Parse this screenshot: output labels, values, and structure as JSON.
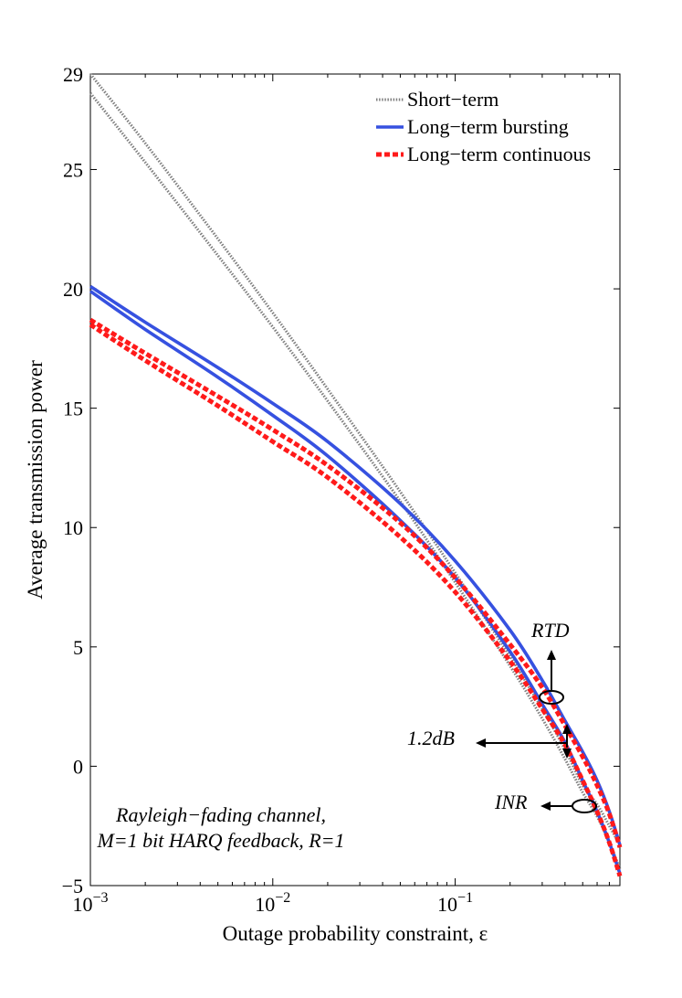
{
  "chart_data": {
    "type": "line",
    "title": "",
    "xlabel": "Outage probability constraint, ε",
    "ylabel": "Average transmission power",
    "xscale": "log",
    "xlim": [
      0.001,
      0.8
    ],
    "ylim": [
      -5,
      29
    ],
    "x_ticks": [
      0.001,
      0.01,
      0.1
    ],
    "x_tick_labels": [
      {
        "base": "10",
        "exp": "−3"
      },
      {
        "base": "10",
        "exp": "−2"
      },
      {
        "base": "10",
        "exp": "−1"
      }
    ],
    "y_ticks": [
      -5,
      0,
      5,
      10,
      15,
      20,
      25,
      29
    ],
    "y_tick_labels": [
      "−5",
      "0",
      "5",
      "10",
      "15",
      "20",
      "25",
      "29"
    ],
    "grid": false,
    "legend_position": "top-right",
    "legend": [
      {
        "label": "Short−term",
        "style": "dotted",
        "color": "#7f7f7f"
      },
      {
        "label": "Long−term bursting",
        "style": "solid",
        "color": "#3651e0"
      },
      {
        "label": "Long−term continuous",
        "style": "dashed",
        "color": "#ff1a1a"
      }
    ],
    "series": [
      {
        "name": "Short-term (RTD)",
        "style": "dotted",
        "color": "#7f7f7f",
        "x": [
          0.001,
          0.002,
          0.005,
          0.01,
          0.02,
          0.05,
          0.1,
          0.2,
          0.3,
          0.4,
          0.5,
          0.6,
          0.7,
          0.8
        ],
        "y": [
          29.0,
          26.1,
          22.1,
          19.0,
          15.8,
          11.5,
          8.1,
          4.6,
          2.4,
          0.7,
          -0.8,
          -1.6,
          -2.5,
          -3.3
        ]
      },
      {
        "name": "Short-term (INR)",
        "style": "dotted",
        "color": "#7f7f7f",
        "x": [
          0.001,
          0.002,
          0.005,
          0.01,
          0.02,
          0.05,
          0.1,
          0.2,
          0.3,
          0.4,
          0.5,
          0.6,
          0.7,
          0.8
        ],
        "y": [
          28.2,
          25.3,
          21.4,
          18.4,
          15.3,
          11.1,
          7.7,
          4.2,
          2.0,
          0.3,
          -1.1,
          -2.1,
          -3.2,
          -4.3
        ]
      },
      {
        "name": "Long-term bursting (RTD)",
        "style": "solid",
        "color": "#3651e0",
        "x": [
          0.001,
          0.002,
          0.005,
          0.01,
          0.02,
          0.05,
          0.1,
          0.2,
          0.3,
          0.4,
          0.5,
          0.6,
          0.7,
          0.8
        ],
        "y": [
          20.1,
          18.6,
          16.7,
          15.2,
          13.6,
          11.0,
          8.6,
          5.7,
          3.6,
          1.9,
          0.6,
          -0.6,
          -1.9,
          -3.3
        ]
      },
      {
        "name": "Long-term bursting (INR)",
        "style": "solid",
        "color": "#3651e0",
        "x": [
          0.001,
          0.002,
          0.005,
          0.01,
          0.02,
          0.05,
          0.1,
          0.2,
          0.3,
          0.4,
          0.5,
          0.6,
          0.7,
          0.8
        ],
        "y": [
          19.9,
          18.3,
          16.3,
          14.7,
          13.0,
          10.3,
          7.9,
          4.8,
          2.6,
          1.0,
          -0.6,
          -1.9,
          -3.2,
          -4.5
        ]
      },
      {
        "name": "Long-term continuous (RTD)",
        "style": "dashed",
        "color": "#ff1a1a",
        "x": [
          0.001,
          0.002,
          0.005,
          0.01,
          0.02,
          0.05,
          0.1,
          0.2,
          0.3,
          0.4,
          0.5,
          0.6,
          0.7,
          0.8
        ],
        "y": [
          18.7,
          17.3,
          15.5,
          14.1,
          12.6,
          10.2,
          7.9,
          5.1,
          3.3,
          1.7,
          0.4,
          -0.8,
          -2.0,
          -3.4
        ]
      },
      {
        "name": "Long-term continuous (INR)",
        "style": "dashed",
        "color": "#ff1a1a",
        "x": [
          0.001,
          0.002,
          0.005,
          0.01,
          0.02,
          0.05,
          0.1,
          0.2,
          0.3,
          0.4,
          0.5,
          0.6,
          0.7,
          0.8
        ],
        "y": [
          18.5,
          17.0,
          15.1,
          13.6,
          12.1,
          9.6,
          7.3,
          4.4,
          2.4,
          0.9,
          -0.6,
          -1.9,
          -3.2,
          -4.6
        ]
      }
    ],
    "annotations": {
      "rtd": "RTD",
      "gap": "1.2dB",
      "inr": "INR",
      "caption_line1": "Rayleigh−fading channel,",
      "caption_line2": "M=1 bit HARQ feedback, R=1"
    }
  }
}
